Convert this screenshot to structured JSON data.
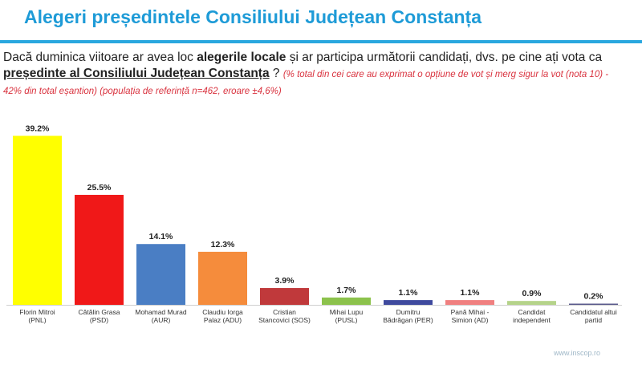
{
  "header": {
    "title": "Alegeri președintele Consiliului Județean Constanța"
  },
  "question": {
    "part1": "Dacă duminica viitoare ar avea loc ",
    "bold1": "alegerile locale",
    "part2": " și ar participa următorii candidați, dvs. pe cine ați vota ca ",
    "bold2": "președinte al Consiliului Județean Constanța",
    "part3": " ? ",
    "note": "(% total din cei care au exprimat o opțiune de vot și merg sigur la vot (nota 10) - 42% din total eșantion) (populația de referință n=462, eroare ±4,6%)"
  },
  "credit": "www.inscop.ro",
  "chart_data": {
    "type": "bar",
    "title": "",
    "xlabel": "",
    "ylabel": "",
    "ylim": [
      0,
      40
    ],
    "grid": false,
    "categories": [
      [
        "Florin Mitroi",
        "(PNL)"
      ],
      [
        "Cătălin Grasa",
        "(PSD)"
      ],
      [
        "Mohamad Murad",
        "(AUR)"
      ],
      [
        "Claudiu Iorga",
        "Palaz (ADU)"
      ],
      [
        "Cristian",
        "Stancovici (SOS)"
      ],
      [
        "Mihai Lupu",
        "(PUSL)"
      ],
      [
        "Dumitru",
        "Bădrăgan (PER)"
      ],
      [
        "Pană Mihai -",
        "Simion (AD)"
      ],
      [
        "Candidat",
        "independent"
      ],
      [
        "Candidatul altui",
        "partid"
      ]
    ],
    "values": [
      39.2,
      25.5,
      14.1,
      12.3,
      3.9,
      1.7,
      1.1,
      1.1,
      0.9,
      0.2
    ],
    "value_labels": [
      "39.2%",
      "25.5%",
      "14.1%",
      "12.3%",
      "3.9%",
      "1.7%",
      "1.1%",
      "1.1%",
      "0.9%",
      "0.2%"
    ],
    "colors": [
      "#ffff00",
      "#f01818",
      "#4a7ec4",
      "#f58c3c",
      "#c0393b",
      "#8cc24c",
      "#3f4a9e",
      "#f08080",
      "#b5d38a",
      "#5a5a8c"
    ]
  }
}
